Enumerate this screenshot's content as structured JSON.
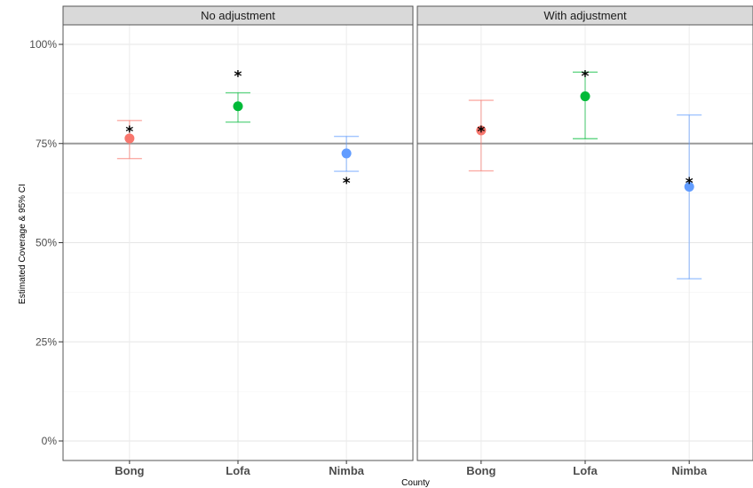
{
  "chart_data": {
    "type": "scatter",
    "xlabel": "County",
    "ylabel": "Estimated Coverage & 95% CI",
    "ylim": [
      0,
      100
    ],
    "y_ticks": [
      "0%",
      "25%",
      "50%",
      "75%",
      "100%"
    ],
    "y_tick_values": [
      0,
      25,
      50,
      75,
      100
    ],
    "reference_line": 75,
    "grid": true,
    "legend": "none",
    "categories": [
      "Bong",
      "Lofa",
      "Nimba"
    ],
    "colors": {
      "Bong": "#F8766D",
      "Lofa": "#00BA38",
      "Nimba": "#619CFF"
    },
    "panels": [
      {
        "label": "No adjustment",
        "points": [
          {
            "county": "Bong",
            "estimate": 76.3,
            "ci_low": 71.2,
            "ci_high": 80.8,
            "star": 78.5
          },
          {
            "county": "Lofa",
            "estimate": 84.4,
            "ci_low": 80.4,
            "ci_high": 87.8,
            "star": 92.5
          },
          {
            "county": "Nimba",
            "estimate": 72.5,
            "ci_low": 68.0,
            "ci_high": 76.8,
            "star": 65.5
          }
        ]
      },
      {
        "label": "With adjustment",
        "points": [
          {
            "county": "Bong",
            "estimate": 78.3,
            "ci_low": 68.1,
            "ci_high": 85.9,
            "star": 78.5
          },
          {
            "county": "Lofa",
            "estimate": 86.9,
            "ci_low": 76.2,
            "ci_high": 93.0,
            "star": 92.5
          },
          {
            "county": "Nimba",
            "estimate": 64.1,
            "ci_low": 40.9,
            "ci_high": 82.2,
            "star": 65.5
          }
        ]
      }
    ]
  }
}
